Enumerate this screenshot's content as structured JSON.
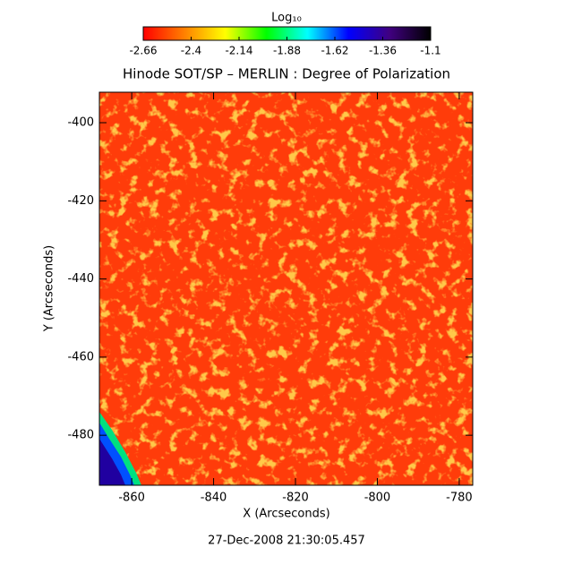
{
  "chart_data": {
    "type": "heatmap",
    "title": "Hinode SOT/SP – MERLIN : Degree of Polarization",
    "xlabel": "X (Arcseconds)",
    "ylabel": "Y (Arcseconds)",
    "footer": "27-Dec-2008 21:30:05.457",
    "xlim": [
      -867.9,
      -776.7
    ],
    "xticks": [
      -860,
      -840,
      -820,
      -800,
      -780
    ],
    "ylim": [
      -492.8,
      -392.2
    ],
    "yticks": [
      -400,
      -420,
      -440,
      -460,
      -480
    ],
    "colorbar": {
      "label": "Log₁₀",
      "clim": [
        -2.66,
        -1.1
      ],
      "ticks": [
        -2.66,
        -2.4,
        -2.14,
        -1.88,
        -1.62,
        -1.36,
        -1.1
      ],
      "colors": [
        "#ff0000",
        "#ff8000",
        "#ffff00",
        "#00ff00",
        "#00ffff",
        "#0000ff",
        "#400080",
        "#000000"
      ]
    }
  }
}
